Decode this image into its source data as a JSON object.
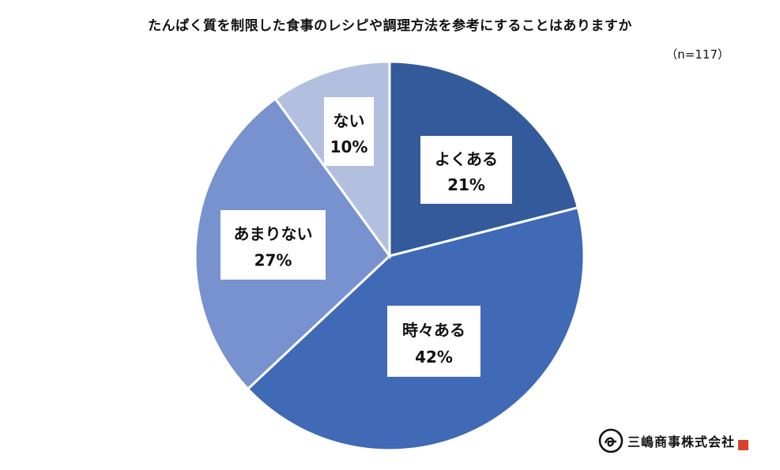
{
  "chart_data": {
    "type": "pie",
    "title": "たんぱく質を制限した食事のレシピや調理方法を参考にすることはありますか",
    "subtitle": "（n=117）",
    "slices": [
      {
        "label": "よくある",
        "value": 21,
        "value_label": "21%",
        "color": "#335a9a"
      },
      {
        "label": "時々ある",
        "value": 42,
        "value_label": "42%",
        "color": "#4069b6"
      },
      {
        "label": "あまりない",
        "value": 27,
        "value_label": "27%",
        "color": "#7891cf"
      },
      {
        "label": "ない",
        "value": 10,
        "value_label": "10%",
        "color": "#b3bfdf"
      }
    ]
  },
  "logo": {
    "text": "三嶋商事株式会社",
    "seal": "三嶋"
  }
}
